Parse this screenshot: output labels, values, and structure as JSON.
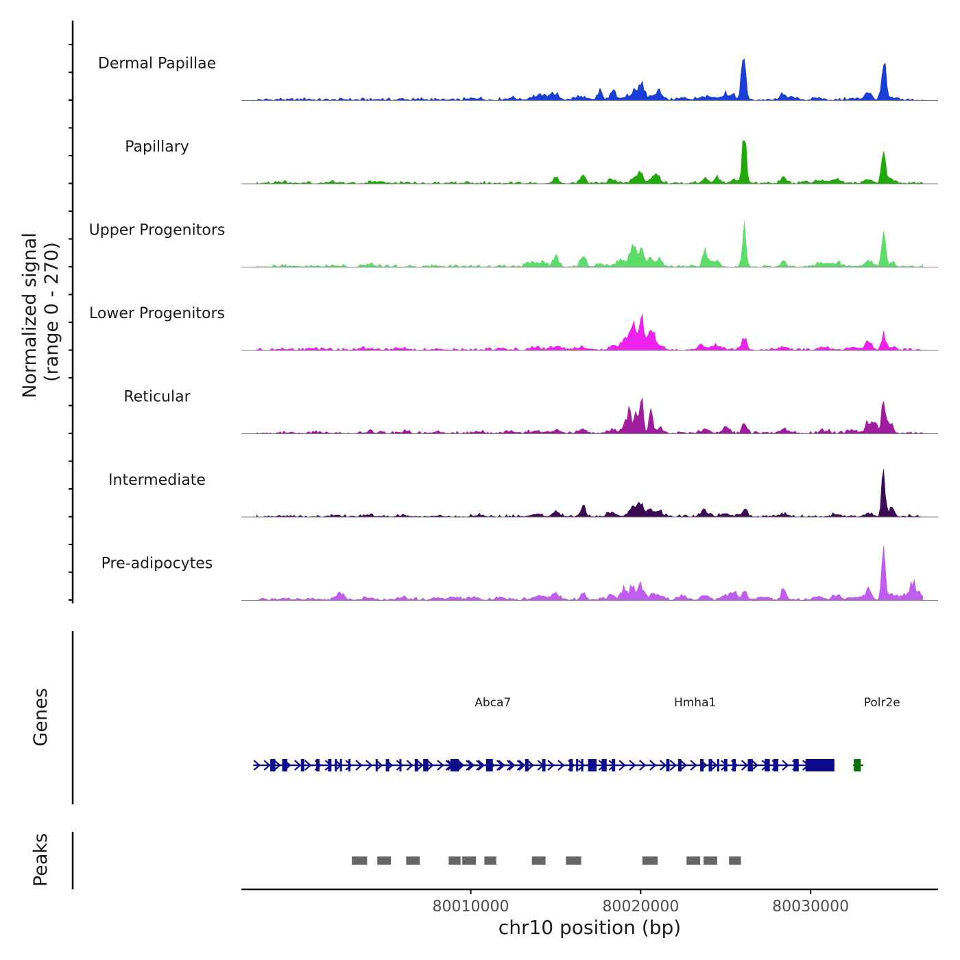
{
  "chart_data": {
    "type": "area",
    "title": "",
    "ylabel_line1": "Normalized signal",
    "ylabel_line2": "(range 0 - 270)",
    "ylim": [
      0,
      270
    ],
    "xlabel": "chr10 position (bp)",
    "xlim": [
      79996500,
      80037500
    ],
    "x_ticks": [
      80010000,
      80020000,
      80030000
    ],
    "x_tick_labels": [
      "80010000",
      "80020000",
      "80030000"
    ],
    "signal_range": [
      79997400,
      80036600
    ],
    "bin_size": 200,
    "series": [
      {
        "name": "Dermal Papillae",
        "color": "#1a3fd6",
        "peaks": [
          [
            79998800,
            4,
            200
          ],
          [
            80000400,
            6,
            200
          ],
          [
            80002600,
            5,
            200
          ],
          [
            80004600,
            5,
            200
          ],
          [
            80006000,
            6,
            200
          ],
          [
            80007200,
            5,
            200
          ],
          [
            80010300,
            12,
            300
          ],
          [
            80012400,
            14,
            300
          ],
          [
            80013800,
            22,
            300
          ],
          [
            80014500,
            18,
            300
          ],
          [
            80015000,
            30,
            250
          ],
          [
            80016400,
            18,
            300
          ],
          [
            80017600,
            46,
            150
          ],
          [
            80018400,
            52,
            150
          ],
          [
            80019200,
            18,
            300
          ],
          [
            80019700,
            44,
            200
          ],
          [
            80020050,
            85,
            150
          ],
          [
            80020600,
            22,
            300
          ],
          [
            80021100,
            50,
            150
          ],
          [
            80022500,
            14,
            300
          ],
          [
            80023700,
            18,
            300
          ],
          [
            80024300,
            14,
            300
          ],
          [
            80025000,
            30,
            250
          ],
          [
            80025400,
            20,
            250
          ],
          [
            80026050,
            270,
            120
          ],
          [
            80028400,
            38,
            200
          ],
          [
            80029000,
            10,
            300
          ],
          [
            80030500,
            10,
            300
          ],
          [
            80032500,
            8,
            300
          ],
          [
            80033400,
            42,
            200
          ],
          [
            80034300,
            270,
            120
          ],
          [
            80034800,
            14,
            300
          ]
        ]
      },
      {
        "name": "Papillary",
        "color": "#1faa0a",
        "peaks": [
          [
            79999000,
            5,
            300
          ],
          [
            80002000,
            6,
            300
          ],
          [
            80004500,
            10,
            300
          ],
          [
            80015000,
            40,
            150
          ],
          [
            80016600,
            45,
            150
          ],
          [
            80018300,
            22,
            200
          ],
          [
            80019600,
            26,
            200
          ],
          [
            80020000,
            62,
            150
          ],
          [
            80020700,
            34,
            200
          ],
          [
            80021000,
            40,
            150
          ],
          [
            80023800,
            42,
            150
          ],
          [
            80024500,
            30,
            200
          ],
          [
            80025500,
            26,
            200
          ],
          [
            80026100,
            290,
            110
          ],
          [
            80028400,
            40,
            150
          ],
          [
            80030500,
            14,
            300
          ],
          [
            80031500,
            20,
            300
          ],
          [
            80033400,
            22,
            250
          ],
          [
            80034300,
            185,
            120
          ],
          [
            80034800,
            20,
            200
          ]
        ]
      },
      {
        "name": "Upper Progenitors",
        "color": "#5ddc6a",
        "peaks": [
          [
            79999000,
            5,
            300
          ],
          [
            80002000,
            8,
            300
          ],
          [
            80004000,
            12,
            300
          ],
          [
            80013500,
            26,
            250
          ],
          [
            80014200,
            28,
            250
          ],
          [
            80015000,
            62,
            150
          ],
          [
            80016600,
            70,
            150
          ],
          [
            80017600,
            18,
            250
          ],
          [
            80018800,
            36,
            250
          ],
          [
            80019400,
            55,
            200
          ],
          [
            80019600,
            90,
            150
          ],
          [
            80020000,
            98,
            150
          ],
          [
            80020600,
            48,
            200
          ],
          [
            80021100,
            45,
            150
          ],
          [
            80023800,
            90,
            150
          ],
          [
            80024400,
            34,
            200
          ],
          [
            80026100,
            220,
            110
          ],
          [
            80028400,
            34,
            150
          ],
          [
            80030600,
            18,
            300
          ],
          [
            80031500,
            20,
            300
          ],
          [
            80033400,
            38,
            200
          ],
          [
            80034300,
            175,
            110
          ],
          [
            80034800,
            20,
            200
          ]
        ]
      },
      {
        "name": "Lower Progenitors",
        "color": "#ee22ee",
        "peaks": [
          [
            79999000,
            6,
            300
          ],
          [
            80001000,
            5,
            300
          ],
          [
            80004000,
            8,
            300
          ],
          [
            80006000,
            8,
            300
          ],
          [
            80008000,
            8,
            300
          ],
          [
            80013800,
            14,
            300
          ],
          [
            80015000,
            18,
            300
          ],
          [
            80016600,
            14,
            300
          ],
          [
            80018400,
            24,
            250
          ],
          [
            80019000,
            55,
            150
          ],
          [
            80019300,
            75,
            150
          ],
          [
            80019600,
            130,
            120
          ],
          [
            80019900,
            90,
            150
          ],
          [
            80020100,
            125,
            120
          ],
          [
            80020400,
            60,
            150
          ],
          [
            80020700,
            105,
            120
          ],
          [
            80021100,
            34,
            200
          ],
          [
            80023600,
            18,
            300
          ],
          [
            80024500,
            22,
            300
          ],
          [
            80026100,
            75,
            130
          ],
          [
            80028400,
            20,
            250
          ],
          [
            80030800,
            14,
            300
          ],
          [
            80032500,
            16,
            300
          ],
          [
            80033400,
            50,
            200
          ],
          [
            80034300,
            75,
            140
          ],
          [
            80034800,
            20,
            200
          ]
        ]
      },
      {
        "name": "Reticular",
        "color": "#a01c9e",
        "peaks": [
          [
            79999500,
            4,
            300
          ],
          [
            80001000,
            5,
            300
          ],
          [
            80004000,
            8,
            300
          ],
          [
            80006000,
            8,
            300
          ],
          [
            80008000,
            8,
            300
          ],
          [
            80010500,
            10,
            300
          ],
          [
            80012400,
            12,
            300
          ],
          [
            80013800,
            14,
            300
          ],
          [
            80015000,
            18,
            300
          ],
          [
            80016600,
            20,
            250
          ],
          [
            80018300,
            22,
            250
          ],
          [
            80019000,
            45,
            150
          ],
          [
            80019300,
            120,
            120
          ],
          [
            80019700,
            100,
            120
          ],
          [
            80020000,
            60,
            150
          ],
          [
            80020050,
            140,
            100
          ],
          [
            80020600,
            110,
            110
          ],
          [
            80021100,
            30,
            200
          ],
          [
            80023800,
            24,
            250
          ],
          [
            80025000,
            34,
            200
          ],
          [
            80026100,
            70,
            130
          ],
          [
            80028400,
            28,
            200
          ],
          [
            80030800,
            14,
            300
          ],
          [
            80032500,
            18,
            300
          ],
          [
            80033400,
            75,
            150
          ],
          [
            80033800,
            60,
            150
          ],
          [
            80034300,
            190,
            110
          ],
          [
            80034700,
            55,
            150
          ]
        ]
      },
      {
        "name": "Intermediate",
        "color": "#3a0a52",
        "peaks": [
          [
            79999000,
            5,
            300
          ],
          [
            80002000,
            5,
            300
          ],
          [
            80004000,
            8,
            300
          ],
          [
            80006000,
            8,
            300
          ],
          [
            80008000,
            6,
            300
          ],
          [
            80010500,
            8,
            300
          ],
          [
            80013800,
            16,
            300
          ],
          [
            80015000,
            30,
            200
          ],
          [
            80016600,
            54,
            150
          ],
          [
            80018300,
            24,
            250
          ],
          [
            80019400,
            28,
            250
          ],
          [
            80019800,
            45,
            200
          ],
          [
            80020000,
            38,
            200
          ],
          [
            80020600,
            38,
            200
          ],
          [
            80021100,
            30,
            200
          ],
          [
            80023800,
            34,
            200
          ],
          [
            80025000,
            20,
            250
          ],
          [
            80026100,
            50,
            150
          ],
          [
            80028400,
            14,
            300
          ],
          [
            80031500,
            12,
            300
          ],
          [
            80033400,
            20,
            250
          ],
          [
            80034300,
            250,
            110
          ],
          [
            80034800,
            40,
            150
          ]
        ]
      },
      {
        "name": "Pre-adipocytes",
        "color": "#c05cf0",
        "peaks": [
          [
            79998900,
            10,
            200
          ],
          [
            80000600,
            10,
            200
          ],
          [
            80002100,
            14,
            200
          ],
          [
            80002400,
            30,
            200
          ],
          [
            80004000,
            16,
            300
          ],
          [
            80006000,
            14,
            300
          ],
          [
            80008000,
            14,
            300
          ],
          [
            80009000,
            14,
            300
          ],
          [
            80010200,
            16,
            300
          ],
          [
            80011800,
            14,
            300
          ],
          [
            80013800,
            12,
            300
          ],
          [
            80014400,
            16,
            300
          ],
          [
            80015000,
            34,
            200
          ],
          [
            80016600,
            44,
            150
          ],
          [
            80018300,
            24,
            250
          ],
          [
            80019000,
            70,
            150
          ],
          [
            80019500,
            70,
            150
          ],
          [
            80020000,
            90,
            150
          ],
          [
            80020600,
            24,
            250
          ],
          [
            80021100,
            30,
            200
          ],
          [
            80022500,
            18,
            300
          ],
          [
            80023800,
            30,
            200
          ],
          [
            80025000,
            28,
            250
          ],
          [
            80025500,
            50,
            150
          ],
          [
            80026100,
            60,
            150
          ],
          [
            80027200,
            18,
            300
          ],
          [
            80028400,
            70,
            130
          ],
          [
            80030400,
            16,
            300
          ],
          [
            80031500,
            18,
            300
          ],
          [
            80032500,
            18,
            300
          ],
          [
            80033400,
            50,
            200
          ],
          [
            80034300,
            290,
            110
          ],
          [
            80034800,
            30,
            200
          ],
          [
            80035500,
            28,
            250
          ],
          [
            80036000,
            90,
            150
          ],
          [
            80036300,
            40,
            200
          ]
        ]
      }
    ],
    "genes": [
      {
        "name": "Abca7",
        "label_pos": 80011300,
        "start": 79997200,
        "end": 80013700,
        "color": "#0c0c8c",
        "exons": [
          [
            79998200,
            79998500
          ],
          [
            79998900,
            79999200
          ],
          [
            80000000,
            80000200
          ],
          [
            80000900,
            80001100
          ],
          [
            80001600,
            80001800
          ],
          [
            80002000,
            80002100
          ],
          [
            80002300,
            80002400
          ],
          [
            80002800,
            80002900
          ],
          [
            80004400,
            80004500
          ],
          [
            80005000,
            80005200
          ],
          [
            80005800,
            80005900
          ],
          [
            80006700,
            80006900
          ],
          [
            80007200,
            80007500
          ]
        ]
      },
      {
        "name": "Hmha1",
        "label_pos": 80023200,
        "start": 80008500,
        "end": 80031400,
        "color": "#0c0c8c",
        "exons": [
          [
            80008800,
            80009300
          ],
          [
            80010900,
            80011300
          ],
          [
            80013200,
            80013400
          ],
          [
            80014200,
            80014400
          ],
          [
            80015800,
            80016000
          ],
          [
            80016200,
            80016300
          ],
          [
            80016500,
            80016600
          ],
          [
            80016900,
            80017400
          ],
          [
            80017700,
            80018000
          ],
          [
            80018300,
            80018500
          ],
          [
            80021500,
            80021700
          ],
          [
            80022200,
            80022400
          ],
          [
            80023500,
            80023700
          ],
          [
            80024000,
            80024200
          ],
          [
            80024500,
            80024600
          ],
          [
            80024900,
            80025100
          ],
          [
            80025400,
            80025600
          ],
          [
            80026300,
            80026600
          ],
          [
            80027300,
            80027600
          ],
          [
            80027800,
            80028100
          ],
          [
            80029000,
            80029300
          ],
          [
            80029700,
            80031400
          ]
        ]
      },
      {
        "name": "Polr2e",
        "label_pos": 80034200,
        "start": 80032500,
        "end": 80033100,
        "color": "#0a6e0a",
        "exons": [
          [
            80032550,
            80032950
          ]
        ]
      }
    ],
    "peak_regions": [
      [
        80003000,
        80003900
      ],
      [
        80004500,
        80005300
      ],
      [
        80006200,
        80007000
      ],
      [
        80008700,
        80009400
      ],
      [
        80009500,
        80010300
      ],
      [
        80010800,
        80011500
      ],
      [
        80013600,
        80014400
      ],
      [
        80015600,
        80016500
      ],
      [
        80020100,
        80021000
      ],
      [
        80022700,
        80023500
      ],
      [
        80023700,
        80024500
      ],
      [
        80025200,
        80025900
      ]
    ],
    "track_labels": {
      "genes": "Genes",
      "peaks": "Peaks"
    }
  }
}
